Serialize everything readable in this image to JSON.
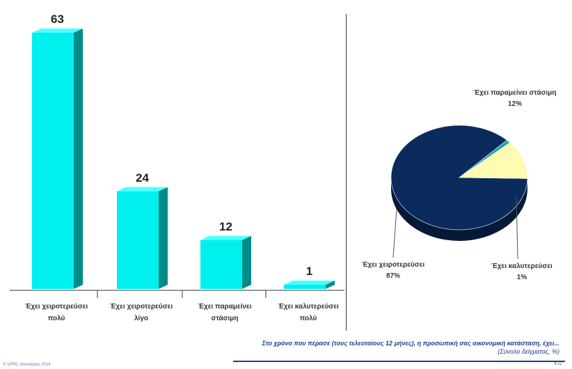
{
  "chart_data": [
    {
      "type": "bar",
      "categories": [
        [
          "Έχει χειροτερεύσει",
          "πολύ"
        ],
        [
          "Έχει χειροτερεύσει",
          "λίγο"
        ],
        [
          "Έχει παραμείνει",
          "στάσιμη"
        ],
        [
          "Έχει καλυτερεύσει",
          "πολύ"
        ]
      ],
      "values": [
        63,
        24,
        12,
        1
      ],
      "ylim": [
        0,
        63
      ],
      "colors": {
        "front": "#00f0f0",
        "side": "#008b8b",
        "top": "#4dffff",
        "base_line": "#333333"
      }
    },
    {
      "type": "pie",
      "slices": [
        {
          "label": "Έχει χειροτερεύσει",
          "value": 87,
          "display": "87%",
          "color": "#0a2b5c",
          "dark": "#051a38"
        },
        {
          "label": "Έχει καλυτερεύσει",
          "value": 1,
          "display": "1%",
          "color": "#1aa3a3",
          "dark": "#0d6b6b"
        },
        {
          "label": "Έχει παραμείνει στάσιμη",
          "value": 12,
          "display": "12%",
          "color": "#fffbb0",
          "dark": "#c9c27a"
        }
      ]
    }
  ],
  "footnote": {
    "question": "Στο χρόνο που πέρασε (τους τελευταίους 12 μήνες), η προσωπική σας οικονομική κατάσταση, έχει...",
    "sample": "(Σύνολο δείγματος, %)"
  },
  "footer": {
    "copyright": "© VPRC Ιανουάριος 2014",
    "page": "4.12"
  }
}
